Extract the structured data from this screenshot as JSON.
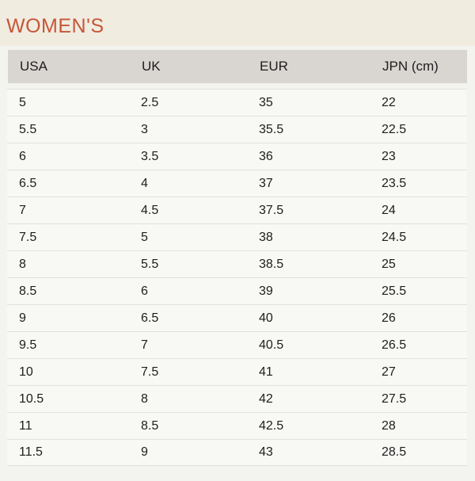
{
  "page": {
    "section_title": "WOMEN'S"
  },
  "colors": {
    "title_text": "#c75539",
    "banner_bg": "#f0ecdf",
    "page_bg": "#f3f3f0",
    "header_bg": "#d9d6d2",
    "row_bg": "#f8f8f5",
    "divider": "#e2e1dc",
    "body_text": "#1d1d1d"
  },
  "chart_data": {
    "type": "table",
    "title": "WOMEN'S",
    "columns": [
      "USA",
      "UK",
      "EUR",
      "JPN (cm)"
    ],
    "rows": [
      [
        "5",
        "2.5",
        "35",
        "22"
      ],
      [
        "5.5",
        "3",
        "35.5",
        "22.5"
      ],
      [
        "6",
        "3.5",
        "36",
        "23"
      ],
      [
        "6.5",
        "4",
        "37",
        "23.5"
      ],
      [
        "7",
        "4.5",
        "37.5",
        "24"
      ],
      [
        "7.5",
        "5",
        "38",
        "24.5"
      ],
      [
        "8",
        "5.5",
        "38.5",
        "25"
      ],
      [
        "8.5",
        "6",
        "39",
        "25.5"
      ],
      [
        "9",
        "6.5",
        "40",
        "26"
      ],
      [
        "9.5",
        "7",
        "40.5",
        "26.5"
      ],
      [
        "10",
        "7.5",
        "41",
        "27"
      ],
      [
        "10.5",
        "8",
        "42",
        "27.5"
      ],
      [
        "11",
        "8.5",
        "42.5",
        "28"
      ],
      [
        "11.5",
        "9",
        "43",
        "28.5"
      ]
    ]
  }
}
